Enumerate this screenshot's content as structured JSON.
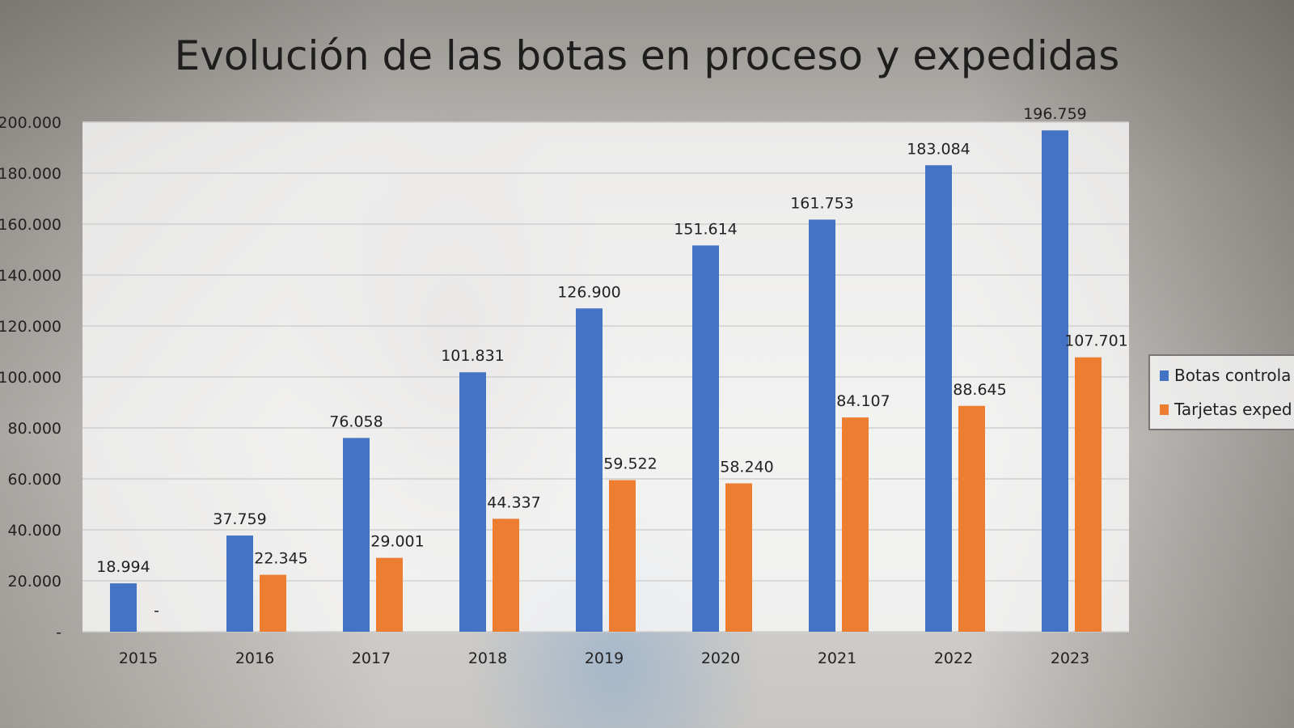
{
  "chart_data": {
    "type": "bar",
    "title": "Evolución de las botas en proceso y expedidas",
    "categories": [
      "2015",
      "2016",
      "2017",
      "2018",
      "2019",
      "2020",
      "2021",
      "2022",
      "2023"
    ],
    "series": [
      {
        "name": "Botas controla",
        "color": "#4472c4",
        "values": [
          18994,
          37759,
          76058,
          101831,
          126900,
          151614,
          161753,
          183084,
          196759
        ],
        "labels": [
          "18.994",
          "37.759",
          "76.058",
          "101.831",
          "126.900",
          "151.614",
          "161.753",
          "183.084",
          "196.759"
        ]
      },
      {
        "name": "Tarjetas exped",
        "color": "#ed7d31",
        "values": [
          0,
          22345,
          29001,
          44337,
          59522,
          58240,
          84107,
          88645,
          107701
        ],
        "labels": [
          "-",
          "22.345",
          "29.001",
          "44.337",
          "59.522",
          "58.240",
          "84.107",
          "88.645",
          "107.701"
        ]
      }
    ],
    "ylim": [
      0,
      200000
    ],
    "yticks": [
      "-",
      "20.000",
      "40.000",
      "60.000",
      "80.000",
      "100.000",
      "120.000",
      "140.000",
      "160.000",
      "180.000",
      "200.000"
    ],
    "grid": true,
    "legend": "right"
  }
}
